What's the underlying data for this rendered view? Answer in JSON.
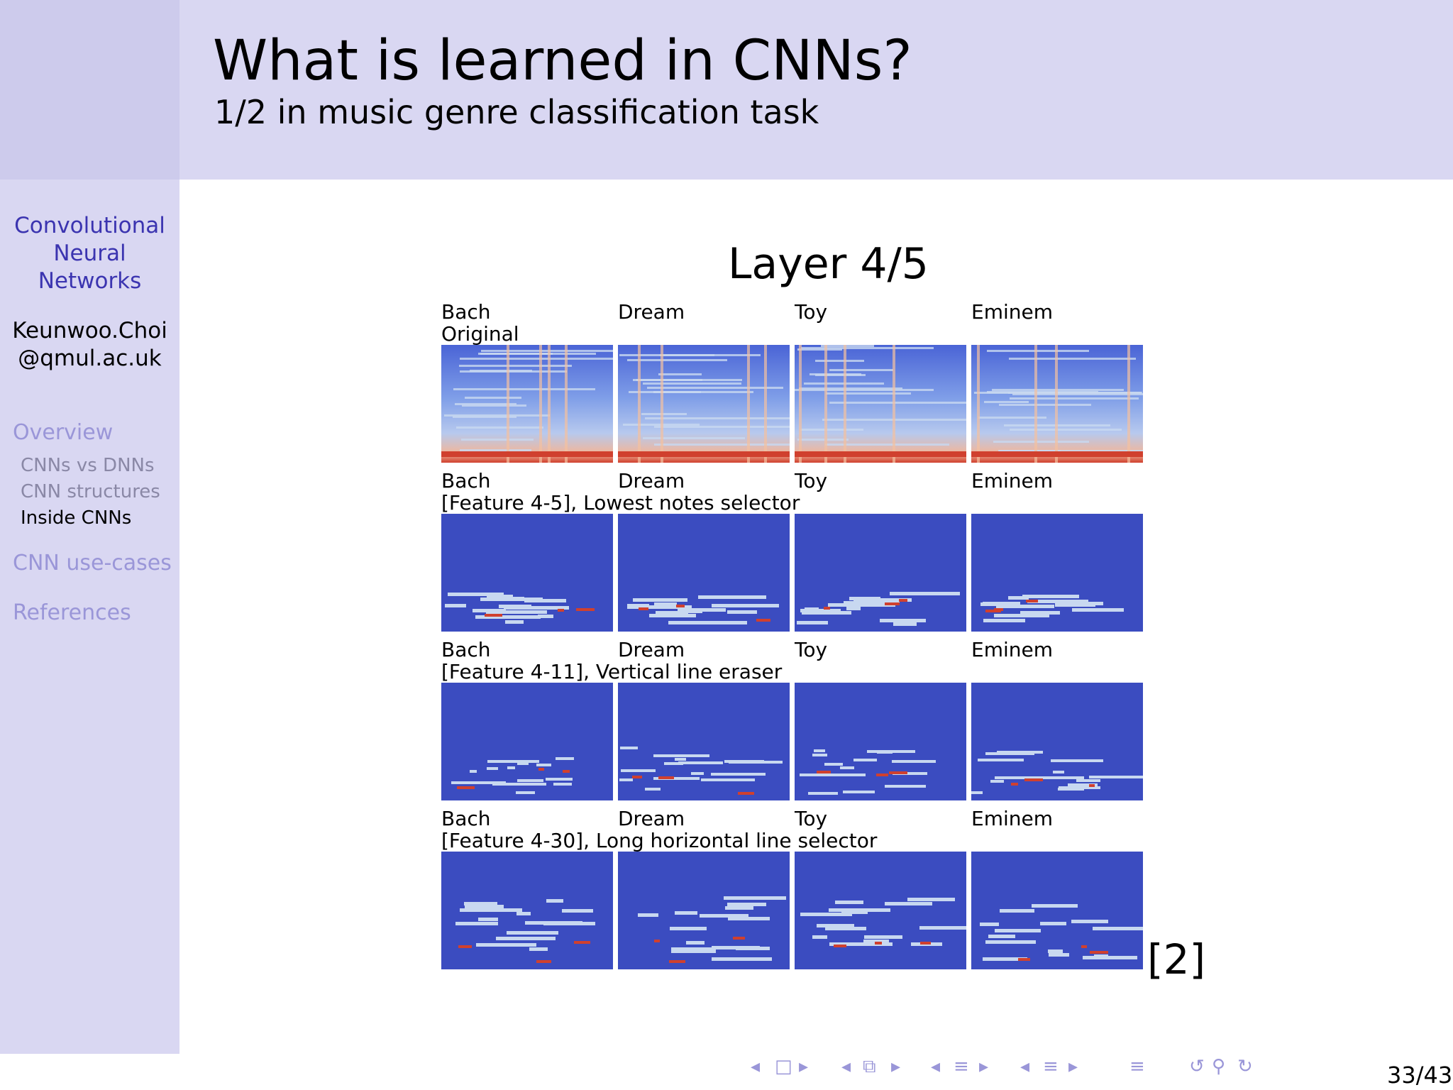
{
  "header": {
    "title": "What is learned in CNNs?",
    "subtitle": "1/2 in music genre classification task"
  },
  "sidebar": {
    "talk_title": [
      "Convolutional",
      "Neural",
      "Networks"
    ],
    "author": [
      "Keunwoo.Choi",
      "@qmul.ac.uk"
    ],
    "nav": [
      {
        "label": "Overview",
        "level": "section",
        "current": false
      },
      {
        "label": "CNNs vs DNNs",
        "level": "sub",
        "current": false
      },
      {
        "label": "CNN structures",
        "level": "sub",
        "current": false
      },
      {
        "label": "Inside CNNs",
        "level": "sub",
        "current": true
      },
      {
        "label": "CNN use-cases",
        "level": "section",
        "current": false
      },
      {
        "label": "References",
        "level": "section",
        "current": false
      }
    ]
  },
  "figure": {
    "title": "Layer 4/5",
    "songs": [
      "Bach",
      "Dream",
      "Toy",
      "Eminem"
    ],
    "rows": [
      {
        "caption": "Original",
        "kind": "original"
      },
      {
        "caption": "[Feature 4-5], Lowest notes selector",
        "kind": "low"
      },
      {
        "caption": "[Feature 4-11], Vertical line eraser",
        "kind": "vert"
      },
      {
        "caption": "[Feature 4-30], Long horizontal line selector",
        "kind": "horiz"
      }
    ],
    "colors": {
      "background": "#3b4cc0",
      "light": "#c8d8f0",
      "warm": "#f4c0a0",
      "hot": "#d0402e"
    }
  },
  "citation": "[2]",
  "page": {
    "current": "33",
    "total": "43",
    "label": "33/43"
  },
  "nav_icons": [
    "left-arrow-icon",
    "frame-icon",
    "right-arrow-icon",
    "subsection-icon",
    "section-icon",
    "document-icon",
    "undo-icon",
    "search-icon",
    "redo-icon"
  ]
}
